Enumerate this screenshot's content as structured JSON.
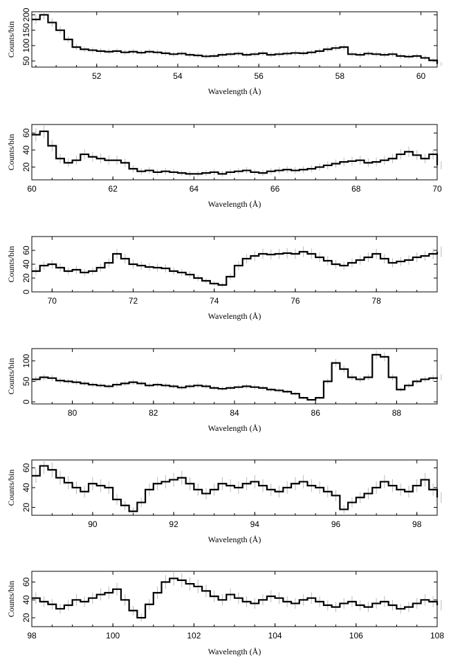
{
  "chart_data": [
    {
      "type": "line",
      "xlabel": "Wavelength (Å)",
      "ylabel": "Counts/bin",
      "xlim": [
        50.4,
        60.4
      ],
      "ylim": [
        30,
        210
      ],
      "xticks": [
        52,
        54,
        56,
        58,
        60
      ],
      "yticks": [
        50,
        100,
        150,
        200
      ],
      "series": [
        {
          "x": [
            50.4,
            50.6,
            50.8,
            51.0,
            51.2,
            51.4,
            51.6,
            51.8,
            52.0,
            52.2,
            52.4,
            52.6,
            52.8,
            53.0,
            53.2,
            53.4,
            53.6,
            53.8,
            54.0,
            54.2,
            54.4,
            54.6,
            54.8,
            55.0,
            55.2,
            55.4,
            55.6,
            55.8,
            56.0,
            56.2,
            56.4,
            56.6,
            56.8,
            57.0,
            57.2,
            57.4,
            57.6,
            57.8,
            58.0,
            58.2,
            58.4,
            58.6,
            58.8,
            59.0,
            59.2,
            59.4,
            59.6,
            59.8,
            60.0,
            60.2,
            60.4
          ],
          "y": [
            185,
            200,
            175,
            150,
            120,
            95,
            88,
            85,
            82,
            80,
            82,
            78,
            80,
            77,
            80,
            78,
            75,
            72,
            74,
            70,
            68,
            65,
            66,
            70,
            72,
            74,
            70,
            72,
            75,
            70,
            72,
            74,
            76,
            75,
            78,
            82,
            88,
            92,
            95,
            72,
            70,
            74,
            72,
            70,
            72,
            66,
            64,
            66,
            60,
            52,
            40
          ]
        }
      ]
    },
    {
      "type": "line",
      "xlabel": "Wavelength (Å)",
      "ylabel": "Counts/bin",
      "xlim": [
        60,
        70
      ],
      "ylim": [
        5,
        70
      ],
      "xticks": [
        60,
        62,
        64,
        66,
        68,
        70
      ],
      "yticks": [
        20,
        40,
        60
      ],
      "series": [
        {
          "x": [
            60.0,
            60.2,
            60.4,
            60.6,
            60.8,
            61.0,
            61.2,
            61.4,
            61.6,
            61.8,
            62.0,
            62.2,
            62.4,
            62.6,
            62.8,
            63.0,
            63.2,
            63.4,
            63.6,
            63.8,
            64.0,
            64.2,
            64.4,
            64.6,
            64.8,
            65.0,
            65.2,
            65.4,
            65.6,
            65.8,
            66.0,
            66.2,
            66.4,
            66.6,
            66.8,
            67.0,
            67.2,
            67.4,
            67.6,
            67.8,
            68.0,
            68.2,
            68.4,
            68.6,
            68.8,
            69.0,
            69.2,
            69.4,
            69.6,
            69.8,
            70.0
          ],
          "y": [
            58,
            62,
            45,
            30,
            25,
            28,
            35,
            32,
            30,
            28,
            28,
            25,
            18,
            15,
            16,
            14,
            15,
            14,
            13,
            12,
            12,
            13,
            14,
            12,
            14,
            15,
            16,
            14,
            13,
            15,
            16,
            17,
            16,
            17,
            18,
            20,
            22,
            24,
            26,
            27,
            28,
            25,
            26,
            28,
            30,
            35,
            38,
            34,
            30,
            35,
            22
          ]
        }
      ]
    },
    {
      "type": "line",
      "xlabel": "Wavelength (Å)",
      "ylabel": "Counts/bin",
      "xlim": [
        69.5,
        79.5
      ],
      "ylim": [
        0,
        80
      ],
      "xticks": [
        70,
        72,
        74,
        76,
        78
      ],
      "yticks": [
        0,
        20,
        40,
        60
      ],
      "series": [
        {
          "x": [
            69.5,
            69.7,
            69.9,
            70.1,
            70.3,
            70.5,
            70.7,
            70.9,
            71.1,
            71.3,
            71.5,
            71.7,
            71.9,
            72.1,
            72.3,
            72.5,
            72.7,
            72.9,
            73.1,
            73.3,
            73.5,
            73.7,
            73.9,
            74.1,
            74.3,
            74.5,
            74.7,
            74.9,
            75.1,
            75.3,
            75.5,
            75.7,
            75.9,
            76.1,
            76.3,
            76.5,
            76.7,
            76.9,
            77.1,
            77.3,
            77.5,
            77.7,
            77.9,
            78.1,
            78.3,
            78.5,
            78.7,
            78.9,
            79.1,
            79.3,
            79.5
          ],
          "y": [
            30,
            38,
            40,
            35,
            30,
            32,
            28,
            30,
            35,
            42,
            55,
            48,
            40,
            38,
            36,
            35,
            34,
            30,
            28,
            25,
            20,
            16,
            12,
            10,
            22,
            38,
            48,
            52,
            55,
            54,
            55,
            56,
            55,
            58,
            55,
            50,
            45,
            40,
            38,
            42,
            46,
            50,
            55,
            48,
            42,
            44,
            46,
            50,
            52,
            55,
            58
          ]
        }
      ]
    },
    {
      "type": "line",
      "xlabel": "Wavelength (Å)",
      "ylabel": "Counts/bin",
      "xlim": [
        79,
        89
      ],
      "ylim": [
        -5,
        130
      ],
      "xticks": [
        80,
        82,
        84,
        86,
        88
      ],
      "yticks": [
        0,
        50,
        100
      ],
      "series": [
        {
          "x": [
            79.0,
            79.2,
            79.4,
            79.6,
            79.8,
            80.0,
            80.2,
            80.4,
            80.6,
            80.8,
            81.0,
            81.2,
            81.4,
            81.6,
            81.8,
            82.0,
            82.2,
            82.4,
            82.6,
            82.8,
            83.0,
            83.2,
            83.4,
            83.6,
            83.8,
            84.0,
            84.2,
            84.4,
            84.6,
            84.8,
            85.0,
            85.2,
            85.4,
            85.6,
            85.8,
            86.0,
            86.2,
            86.4,
            86.6,
            86.8,
            87.0,
            87.2,
            87.4,
            87.6,
            87.8,
            88.0,
            88.2,
            88.4,
            88.6,
            88.8,
            89.0
          ],
          "y": [
            55,
            60,
            58,
            52,
            50,
            48,
            45,
            42,
            40,
            38,
            42,
            45,
            48,
            45,
            40,
            42,
            40,
            38,
            35,
            38,
            40,
            38,
            34,
            32,
            34,
            36,
            38,
            36,
            34,
            30,
            28,
            25,
            20,
            10,
            5,
            10,
            50,
            95,
            80,
            60,
            55,
            60,
            115,
            110,
            60,
            30,
            40,
            50,
            55,
            58,
            60
          ]
        }
      ]
    },
    {
      "type": "line",
      "xlabel": "Wavelength (Å)",
      "ylabel": "Counts/bin",
      "xlim": [
        88.5,
        98.5
      ],
      "ylim": [
        12,
        68
      ],
      "xticks": [
        90,
        92,
        94,
        96,
        98
      ],
      "yticks": [
        20,
        40,
        60
      ],
      "series": [
        {
          "x": [
            88.5,
            88.7,
            88.9,
            89.1,
            89.3,
            89.5,
            89.7,
            89.9,
            90.1,
            90.3,
            90.5,
            90.7,
            90.9,
            91.1,
            91.3,
            91.5,
            91.7,
            91.9,
            92.1,
            92.3,
            92.5,
            92.7,
            92.9,
            93.1,
            93.3,
            93.5,
            93.7,
            93.9,
            94.1,
            94.3,
            94.5,
            94.7,
            94.9,
            95.1,
            95.3,
            95.5,
            95.7,
            95.9,
            96.1,
            96.3,
            96.5,
            96.7,
            96.9,
            97.1,
            97.3,
            97.5,
            97.7,
            97.9,
            98.1,
            98.3,
            98.5
          ],
          "y": [
            52,
            62,
            58,
            50,
            45,
            40,
            36,
            44,
            42,
            40,
            28,
            22,
            16,
            25,
            38,
            44,
            46,
            48,
            50,
            44,
            38,
            34,
            38,
            44,
            42,
            40,
            44,
            46,
            42,
            38,
            36,
            40,
            44,
            46,
            42,
            40,
            36,
            32,
            18,
            25,
            30,
            34,
            40,
            46,
            42,
            38,
            36,
            42,
            48,
            38,
            30
          ]
        }
      ]
    },
    {
      "type": "line",
      "xlabel": "Wavelength (Å)",
      "ylabel": "Counts/bin",
      "xlim": [
        98,
        108
      ],
      "ylim": [
        10,
        72
      ],
      "xticks": [
        98,
        100,
        102,
        104,
        106,
        108
      ],
      "yticks": [
        20,
        40,
        60
      ],
      "series": [
        {
          "x": [
            98.0,
            98.2,
            98.4,
            98.6,
            98.8,
            99.0,
            99.2,
            99.4,
            99.6,
            99.8,
            100.0,
            100.2,
            100.4,
            100.6,
            100.8,
            101.0,
            101.2,
            101.4,
            101.6,
            101.8,
            102.0,
            102.2,
            102.4,
            102.6,
            102.8,
            103.0,
            103.2,
            103.4,
            103.6,
            103.8,
            104.0,
            104.2,
            104.4,
            104.6,
            104.8,
            105.0,
            105.2,
            105.4,
            105.6,
            105.8,
            106.0,
            106.2,
            106.4,
            106.6,
            106.8,
            107.0,
            107.2,
            107.4,
            107.6,
            107.8,
            108.0
          ],
          "y": [
            42,
            38,
            35,
            30,
            34,
            40,
            38,
            42,
            46,
            48,
            52,
            40,
            28,
            20,
            35,
            48,
            60,
            64,
            62,
            58,
            55,
            50,
            44,
            40,
            46,
            42,
            38,
            36,
            40,
            44,
            42,
            38,
            36,
            40,
            42,
            38,
            34,
            32,
            36,
            38,
            34,
            32,
            36,
            38,
            34,
            30,
            32,
            36,
            40,
            38,
            34
          ]
        }
      ]
    }
  ]
}
